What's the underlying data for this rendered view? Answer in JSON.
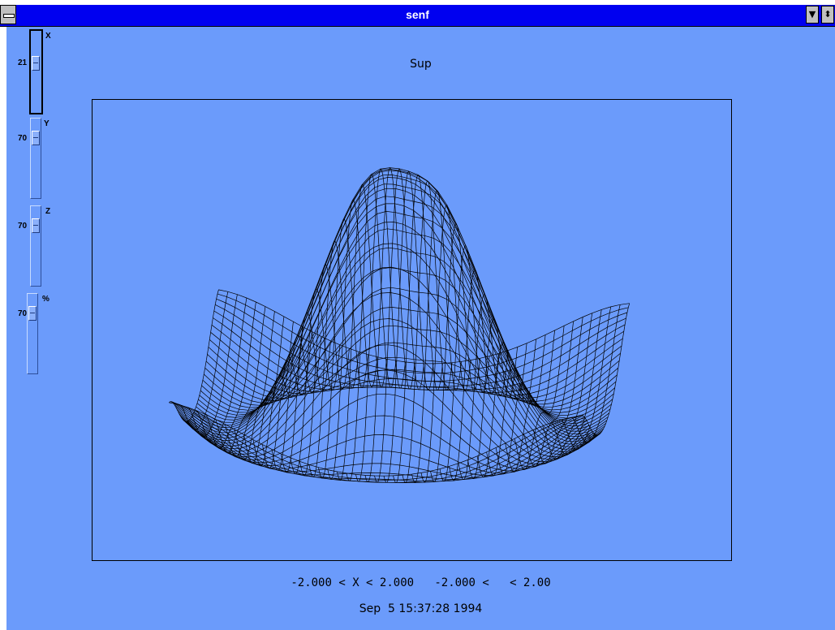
{
  "window": {
    "title": "senf",
    "colors": {
      "titlebar": "#0000f0",
      "client": "#6b9bfb",
      "surface_line": "#000000"
    }
  },
  "titlebar": {
    "system_menu_icon": "system-menu-icon",
    "dropdown_glyph": "▼",
    "restore_glyph": "⬍"
  },
  "sliders": [
    {
      "name": "X",
      "value": "21",
      "level_percent": 21
    },
    {
      "name": "Y",
      "value": "70",
      "level_percent": 70
    },
    {
      "name": "Z",
      "value": "70",
      "level_percent": 70
    },
    {
      "name": "%",
      "value": "70",
      "level_percent": 70
    }
  ],
  "plot": {
    "title": "Sup",
    "range_text": "-2.000 < X < 2.000   -2.000 <   < 2.00",
    "date_text": "Sep  5 15:37:28 1994"
  }
}
